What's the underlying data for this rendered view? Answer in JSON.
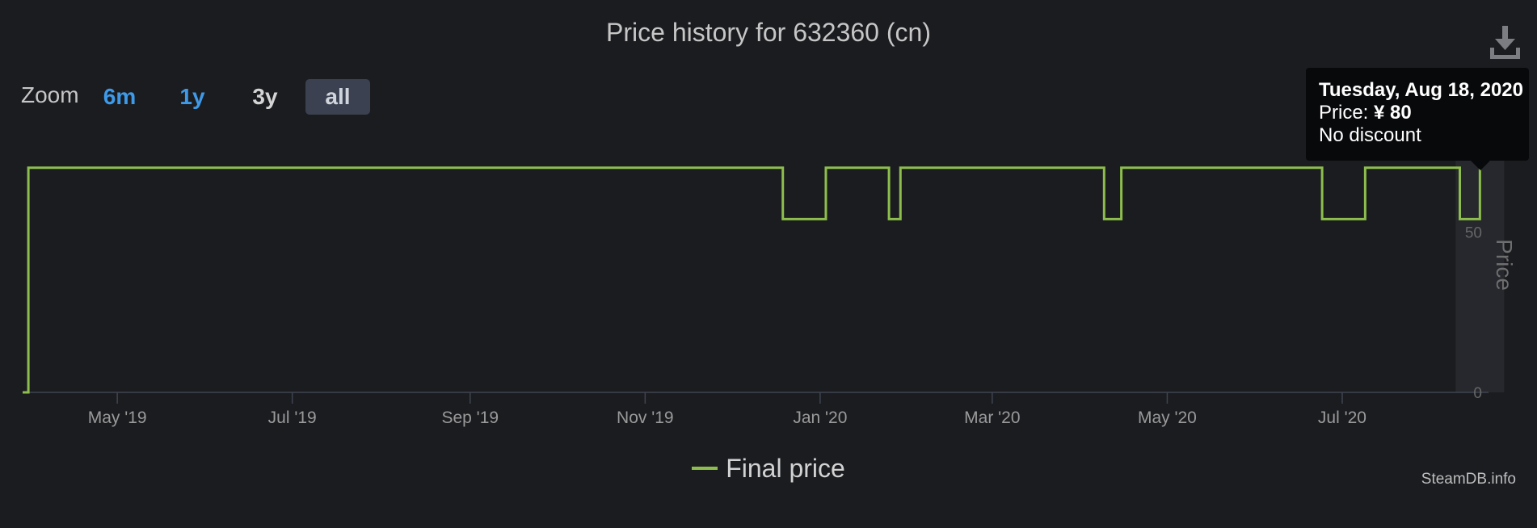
{
  "title": "Price history for 632360 (cn)",
  "zoom": {
    "label": "Zoom",
    "buttons": [
      {
        "label": "6m",
        "state": "link"
      },
      {
        "label": "1y",
        "state": "link"
      },
      {
        "label": "3y",
        "state": "plain"
      },
      {
        "label": "all",
        "state": "active"
      }
    ]
  },
  "legend_label": "Final price",
  "credit": "SteamDB.info",
  "tooltip": {
    "date": "Tuesday, Aug 18, 2020",
    "price_label": "Price:",
    "price_value": "¥ 80",
    "discount": "No discount"
  },
  "icons": {
    "download": "download-icon"
  },
  "colors": {
    "line": "#8dbd4d",
    "background": "#1b1c20",
    "link": "#3e9ae8",
    "tooltip_bg": "#08090b"
  },
  "chart_data": {
    "type": "line",
    "step": true,
    "title": "Price history for 632360 (cn)",
    "xlabel": "",
    "ylabel": "Price",
    "ylim": [
      0,
      80
    ],
    "yticks": [
      0,
      50
    ],
    "xticks": [
      {
        "date": "2019-05-01",
        "label": "May '19"
      },
      {
        "date": "2019-07-01",
        "label": "Jul '19"
      },
      {
        "date": "2019-09-01",
        "label": "Sep '19"
      },
      {
        "date": "2019-11-01",
        "label": "Nov '19"
      },
      {
        "date": "2020-01-01",
        "label": "Jan '20"
      },
      {
        "date": "2020-03-01",
        "label": "Mar '20"
      },
      {
        "date": "2020-05-01",
        "label": "May '20"
      },
      {
        "date": "2020-07-01",
        "label": "Jul '20"
      }
    ],
    "xrange": [
      "2019-03-29",
      "2020-08-21"
    ],
    "highlight": {
      "date": "2020-08-18",
      "value": 80
    },
    "series": [
      {
        "name": "Final price",
        "points": [
          {
            "date": "2019-03-29",
            "value": 0
          },
          {
            "date": "2019-03-31",
            "value": 70
          },
          {
            "date": "2019-12-19",
            "value": 54
          },
          {
            "date": "2020-01-03",
            "value": 70
          },
          {
            "date": "2020-01-25",
            "value": 54
          },
          {
            "date": "2020-01-29",
            "value": 70
          },
          {
            "date": "2020-04-09",
            "value": 54
          },
          {
            "date": "2020-04-15",
            "value": 70
          },
          {
            "date": "2020-06-24",
            "value": 54
          },
          {
            "date": "2020-07-09",
            "value": 70
          },
          {
            "date": "2020-08-11",
            "value": 54
          },
          {
            "date": "2020-08-18",
            "value": 80
          }
        ]
      }
    ]
  }
}
